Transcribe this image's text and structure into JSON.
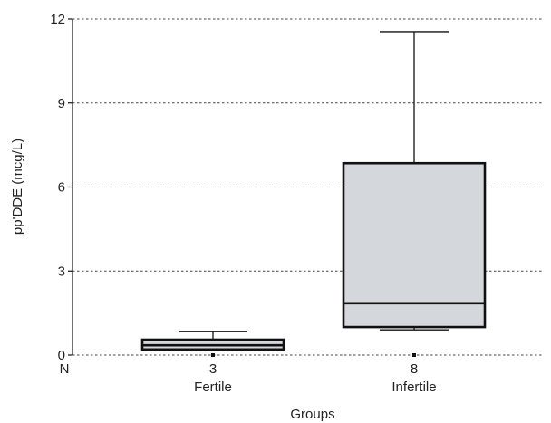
{
  "chart_data": {
    "type": "boxplot",
    "xlabel": "Groups",
    "ylabel": "pp'DDE (mcg/L)",
    "ylim": [
      0,
      12
    ],
    "yticks": [
      0,
      3,
      6,
      9,
      12
    ],
    "grid": true,
    "n_label": "N",
    "categories": [
      "Fertile",
      "Infertile"
    ],
    "n": [
      "3",
      "8"
    ],
    "boxes": [
      {
        "min": 0.2,
        "q1": 0.2,
        "median": 0.35,
        "q3": 0.55,
        "max": 0.85
      },
      {
        "min": 0.9,
        "q1": 1.0,
        "median": 1.85,
        "q3": 6.85,
        "max": 11.55
      }
    ]
  },
  "colors": {
    "box_fill": "#d4d8dc",
    "stroke": "#111111",
    "grid": "#444444"
  }
}
